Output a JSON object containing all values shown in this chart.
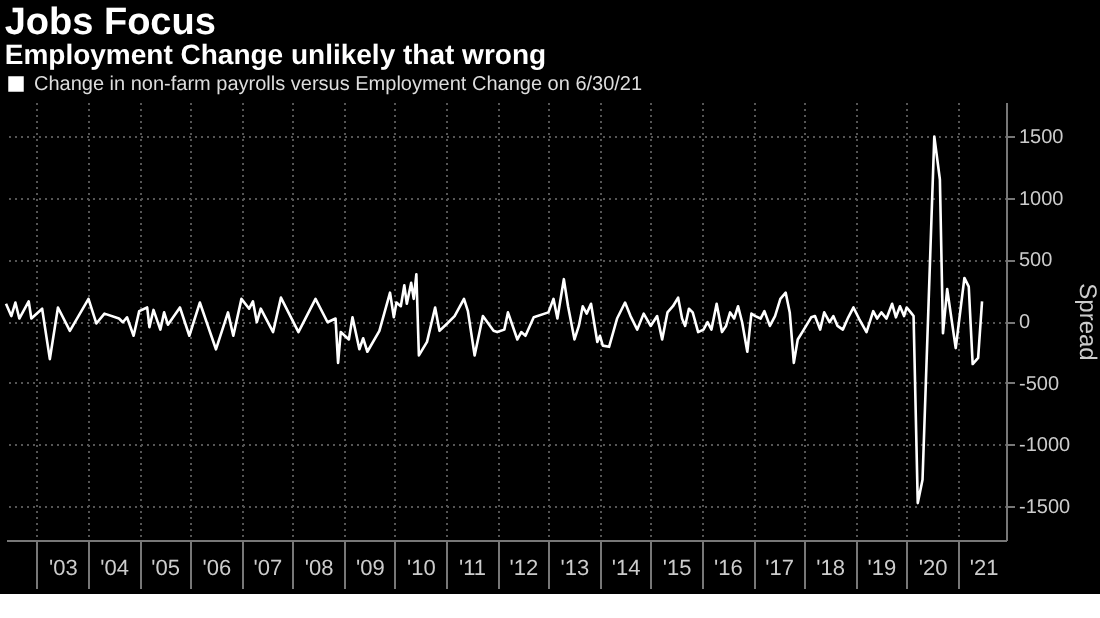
{
  "chart_data": {
    "type": "line",
    "title": "Jobs Focus",
    "subtitle": "Employment Change unlikely that wrong",
    "ylabel": "Spread",
    "xlim": [
      "2002-05-26",
      "2021-12-12"
    ],
    "xticks": [
      {
        "value": "2003",
        "label": null
      },
      {
        "value": "2003-07-02",
        "label": "'03"
      },
      {
        "value": "2004",
        "label": null
      },
      {
        "value": "2004-07-02",
        "label": "'04"
      },
      {
        "value": "2005",
        "label": null
      },
      {
        "value": "2005-07-02",
        "label": "'05"
      },
      {
        "value": "2006",
        "label": null
      },
      {
        "value": "2006-07-02",
        "label": "'06"
      },
      {
        "value": "2007",
        "label": null
      },
      {
        "value": "2007-07-02",
        "label": "'07"
      },
      {
        "value": "2008",
        "label": null
      },
      {
        "value": "2008-07-02",
        "label": "'08"
      },
      {
        "value": "2009",
        "label": null
      },
      {
        "value": "2009-07-02",
        "label": "'09"
      },
      {
        "value": "2010",
        "label": null
      },
      {
        "value": "2010-07-02",
        "label": "'10"
      },
      {
        "value": "2011",
        "label": null
      },
      {
        "value": "2011-07-02",
        "label": "'11"
      },
      {
        "value": "2012",
        "label": null
      },
      {
        "value": "2012-07-02",
        "label": "'12"
      },
      {
        "value": "2013",
        "label": null
      },
      {
        "value": "2013-07-02",
        "label": "'13"
      },
      {
        "value": "2014",
        "label": null
      },
      {
        "value": "2014-07-02",
        "label": "'14"
      },
      {
        "value": "2015",
        "label": null
      },
      {
        "value": "2015-07-02",
        "label": "'15"
      },
      {
        "value": "2016",
        "label": null
      },
      {
        "value": "2016-07-02",
        "label": "'16"
      },
      {
        "value": "2017",
        "label": null
      },
      {
        "value": "2017-07-02",
        "label": "'17"
      },
      {
        "value": "2018",
        "label": null
      },
      {
        "value": "2018-07-02",
        "label": "'18"
      },
      {
        "value": "2019",
        "label": null
      },
      {
        "value": "2019-07-02",
        "label": "'19"
      },
      {
        "value": "2020",
        "label": null
      },
      {
        "value": "2020-07-02",
        "label": "'20"
      },
      {
        "value": "2021",
        "label": null
      },
      {
        "value": "2021-07-02",
        "label": "'21"
      }
    ],
    "ylim": [
      -1780,
      1780
    ],
    "yticks": [
      -1500,
      -1000,
      -500,
      0,
      500,
      1000,
      1500
    ],
    "grid": true,
    "legend": "top",
    "line_style": "solid",
    "marker": "none",
    "x": [
      "2002-05-26",
      "2002-07-03",
      "2002-08-01",
      "2002-08-29",
      "2002-11-04",
      "2002-11-23",
      "2003-02-08",
      "2003-04-04",
      "2003-06-01",
      "2003-08-25",
      "2004-01-05",
      "2004-03-01",
      "2004-04-28",
      "2004-08-10",
      "2004-09-06",
      "2004-10-06",
      "2004-11-22",
      "2005-01-01",
      "2005-02-27",
      "2005-03-15",
      "2005-04-13",
      "2005-06-01",
      "2005-06-28",
      "2005-07-25",
      "2005-10-19",
      "2005-12-25",
      "2006-03-10",
      "2006-07-03",
      "2006-09-27",
      "2006-11-04",
      "2007-01-01",
      "2007-02-25",
      "2007-03-24",
      "2007-04-21",
      "2007-05-19",
      "2007-08-15",
      "2007-10-10",
      "2008-02-12",
      "2008-06-13",
      "2008-09-07",
      "2008-11-03",
      "2008-11-21",
      "2008-12-10",
      "2009-02-06",
      "2009-03-04",
      "2009-04-22",
      "2009-05-19",
      "2009-06-18",
      "2009-09-12",
      "2009-11-27",
      "2009-12-24",
      "2010-01-12",
      "2010-02-12",
      "2010-03-09",
      "2010-03-27",
      "2010-04-27",
      "2010-05-15",
      "2010-06-03",
      "2010-06-21",
      "2010-08-18",
      "2010-10-15",
      "2010-11-15",
      "2011-01-09",
      "2011-03-03",
      "2011-05-09",
      "2011-06-06",
      "2011-07-24",
      "2011-09-21",
      "2011-12-06",
      "2012-01-01",
      "2012-02-21",
      "2012-03-18",
      "2012-05-24",
      "2012-06-21",
      "2012-07-21",
      "2012-09-18",
      "2013-01-01",
      "2013-02-06",
      "2013-03-06",
      "2013-04-21",
      "2013-05-21",
      "2013-07-06",
      "2013-08-06",
      "2013-09-03",
      "2013-10-01",
      "2013-11-01",
      "2013-12-16",
      "2014-01-04",
      "2014-01-24",
      "2014-03-10",
      "2014-05-06",
      "2014-07-02",
      "2014-08-10",
      "2014-09-27",
      "2014-11-12",
      "2015-01-01",
      "2015-02-16",
      "2015-03-24",
      "2015-05-01",
      "2015-06-09",
      "2015-07-16",
      "2015-08-13",
      "2015-09-04",
      "2015-10-01",
      "2015-10-28",
      "2015-12-06",
      "2016-01-13",
      "2016-02-11",
      "2016-03-10",
      "2016-04-16",
      "2016-05-24",
      "2016-06-22",
      "2016-07-21",
      "2016-08-19",
      "2016-09-16",
      "2016-10-15",
      "2016-11-21",
      "2016-12-20",
      "2017-01-17",
      "2017-02-24",
      "2017-03-23",
      "2017-05-01",
      "2017-06-07",
      "2017-07-15",
      "2017-08-22",
      "2017-09-20",
      "2017-10-19",
      "2017-11-16",
      "2017-12-24",
      "2018-02-20",
      "2018-03-19",
      "2018-04-25",
      "2018-05-24",
      "2018-07-01",
      "2018-07-28",
      "2018-08-27",
      "2018-10-04",
      "2018-11-12",
      "2018-12-19",
      "2019-01-27",
      "2019-03-22",
      "2019-05-09",
      "2019-06-06",
      "2019-07-06",
      "2019-08-12",
      "2019-09-21",
      "2019-10-18",
      "2019-11-16",
      "2019-12-15",
      "2020-01-03",
      "2020-02-01",
      "2020-02-21",
      "2020-03-22",
      "2020-04-25",
      "2020-07-18",
      "2020-08-27",
      "2020-09-18",
      "2020-10-18",
      "2020-12-18",
      "2021-02-18",
      "2021-03-21",
      "2021-04-18",
      "2021-05-27",
      "2021-06-24"
    ],
    "series": [
      {
        "name": "Change in non-farm payrolls versus Employment Change on 6/30/21",
        "color": "#ffffff",
        "values": [
          140,
          40,
          150,
          20,
          160,
          20,
          100,
          -310,
          110,
          -80,
          180,
          -20,
          60,
          20,
          -10,
          30,
          -120,
          80,
          110,
          -50,
          90,
          -70,
          70,
          -30,
          110,
          -120,
          150,
          -230,
          70,
          -120,
          180,
          100,
          160,
          -10,
          100,
          -90,
          190,
          -90,
          180,
          -10,
          20,
          -340,
          -90,
          -150,
          30,
          -230,
          -140,
          -250,
          -80,
          230,
          30,
          150,
          120,
          290,
          140,
          310,
          180,
          380,
          -280,
          -170,
          110,
          -80,
          -20,
          40,
          180,
          80,
          -280,
          40,
          -80,
          -90,
          -70,
          70,
          -150,
          -90,
          -120,
          30,
          70,
          180,
          20,
          340,
          120,
          -150,
          -40,
          120,
          60,
          140,
          -170,
          -120,
          -200,
          -210,
          20,
          150,
          40,
          -70,
          60,
          -40,
          40,
          -150,
          70,
          120,
          190,
          20,
          -40,
          100,
          70,
          -90,
          -70,
          -10,
          -70,
          140,
          -90,
          -40,
          70,
          20,
          120,
          -10,
          -250,
          60,
          40,
          20,
          80,
          -40,
          40,
          180,
          230,
          70,
          -340,
          -150,
          -80,
          30,
          40,
          -70,
          70,
          -10,
          40,
          -40,
          -70,
          30,
          110,
          20,
          -90,
          80,
          20,
          70,
          20,
          140,
          30,
          120,
          40,
          110,
          70,
          40,
          -1480,
          -1290,
          1500,
          1150,
          -100,
          260,
          -220,
          350,
          280,
          -350,
          -300,
          160
        ]
      }
    ]
  }
}
